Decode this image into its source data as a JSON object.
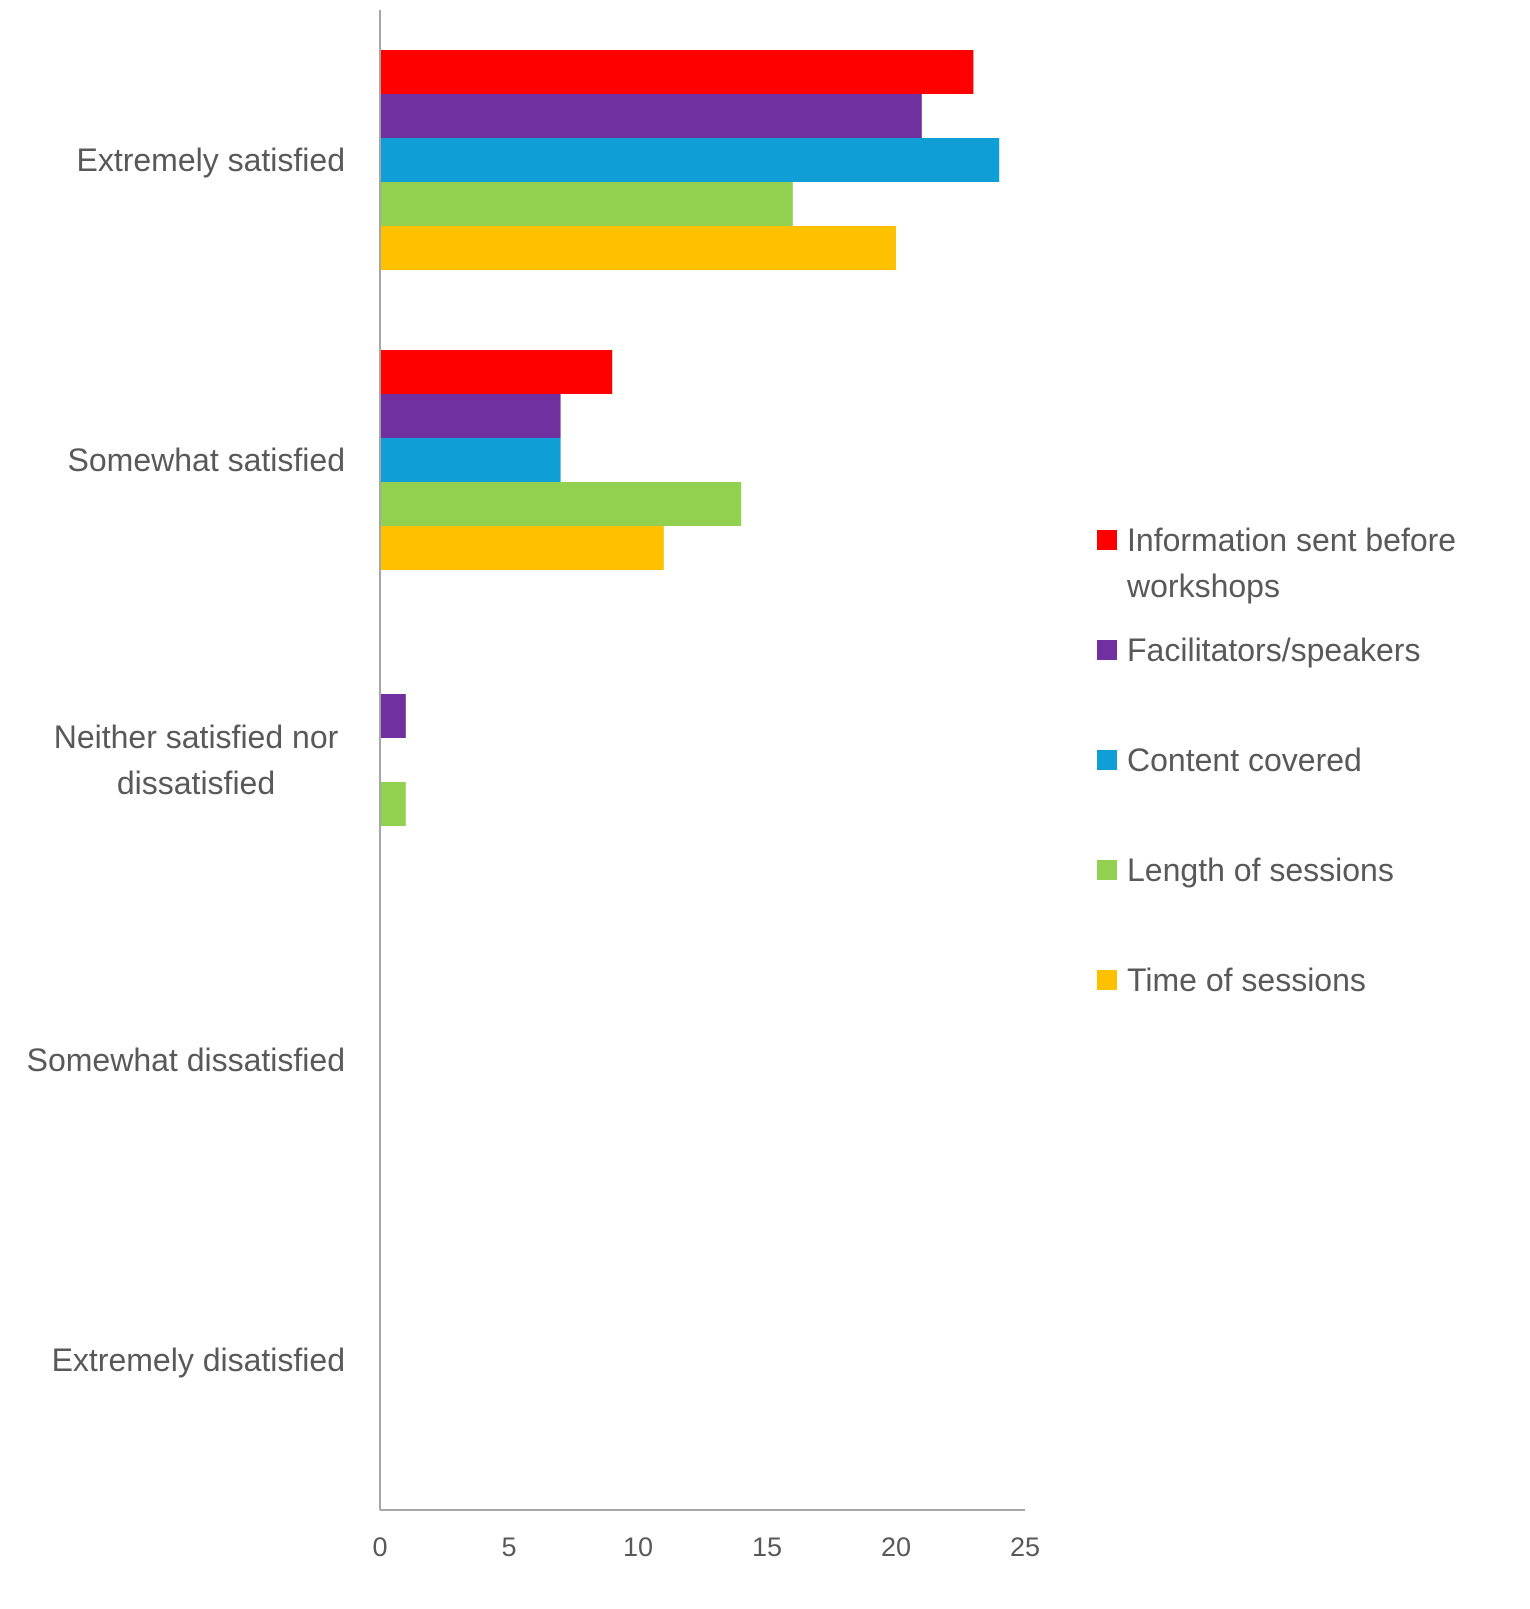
{
  "chart_data": {
    "type": "bar",
    "orientation": "horizontal",
    "categories": [
      "Extremely satisfied",
      "Somewhat satisfied",
      "Neither satisfied nor dissatisfied",
      "Somewhat dissatisfied",
      "Extremely disatisfied"
    ],
    "category_label_lines": [
      [
        "Extremely satisfied"
      ],
      [
        "Somewhat satisfied"
      ],
      [
        "Neither satisfied nor",
        "dissatisfied"
      ],
      [
        "Somewhat dissatisfied"
      ],
      [
        "Extremely disatisfied"
      ]
    ],
    "series": [
      {
        "name": "Information sent before workshops",
        "legend_lines": [
          "Information sent before",
          "workshops"
        ],
        "color": "#FF0000",
        "values": [
          23,
          9,
          0,
          0,
          0
        ]
      },
      {
        "name": "Facilitators/speakers",
        "legend_lines": [
          "Facilitators/speakers"
        ],
        "color": "#7030A0",
        "values": [
          21,
          7,
          1,
          0,
          0
        ]
      },
      {
        "name": "Content covered",
        "legend_lines": [
          "Content covered"
        ],
        "color": "#0F9ED5",
        "values": [
          24,
          7,
          0,
          0,
          0
        ]
      },
      {
        "name": "Length of sessions",
        "legend_lines": [
          "Length of sessions"
        ],
        "color": "#92D050",
        "values": [
          16,
          14,
          1,
          0,
          0
        ]
      },
      {
        "name": "Time of sessions",
        "legend_lines": [
          "Time of sessions"
        ],
        "color": "#FFC000",
        "values": [
          20,
          11,
          0,
          0,
          0
        ]
      }
    ],
    "x_ticks": [
      "0",
      "5",
      "10",
      "15",
      "20",
      "25"
    ],
    "xlim": [
      0,
      25
    ],
    "title": "",
    "xlabel": "",
    "ylabel": "",
    "grid": false,
    "legend_position": "right",
    "axis_color": "#A6A6A6"
  }
}
